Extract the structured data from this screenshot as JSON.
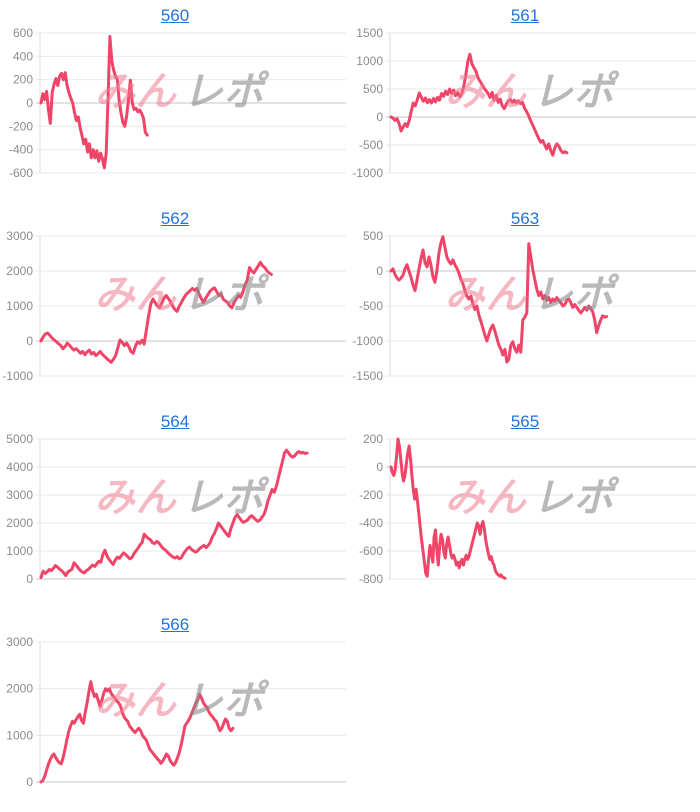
{
  "page": {
    "background": "#ffffff"
  },
  "style": {
    "line_color": "#f04468",
    "grid_color": "#e9e9e9",
    "zero_line_color": "#c4c4c4",
    "axis_line_color": "#dcdcdc",
    "tick_label_color": "#8b8b8b",
    "title_color": "#2273dc"
  },
  "watermark": {
    "part1": "みん",
    "part2": "レポ",
    "part1_color": "rgba(236,126,146,0.55)",
    "part2_color": "rgba(138,138,138,0.6)"
  },
  "chart_data": [
    {
      "title": "560",
      "type": "line",
      "ylim": [
        -600,
        600
      ],
      "yticks": [
        600,
        400,
        200,
        0,
        -200,
        -400,
        -600
      ],
      "x_span_pct": 34.7,
      "grid": "horizontal",
      "legend": "none",
      "values": [
        0,
        80,
        30,
        100,
        -60,
        -175,
        90,
        160,
        210,
        150,
        230,
        255,
        200,
        260,
        150,
        90,
        40,
        0,
        -80,
        -150,
        -120,
        -210,
        -280,
        -350,
        -310,
        -420,
        -350,
        -470,
        -400,
        -470,
        -410,
        -500,
        -430,
        -480,
        -555,
        -430,
        50,
        570,
        360,
        280,
        230,
        200,
        20,
        -90,
        -170,
        -200,
        -110,
        40,
        195,
        0,
        -55,
        -45,
        -75,
        -60,
        -90,
        -130,
        -250,
        -275
      ]
    },
    {
      "title": "561",
      "type": "line",
      "ylim": [
        -1000,
        1500
      ],
      "yticks": [
        1500,
        1000,
        500,
        0,
        -500,
        -1000
      ],
      "x_span_pct": 57.5,
      "grid": "horizontal",
      "legend": "none",
      "values": [
        0,
        -20,
        -60,
        -30,
        -120,
        -250,
        -180,
        -120,
        -170,
        -60,
        100,
        250,
        200,
        310,
        430,
        350,
        280,
        340,
        255,
        310,
        250,
        330,
        270,
        350,
        300,
        420,
        370,
        460,
        400,
        500,
        420,
        480,
        380,
        440,
        360,
        420,
        550,
        750,
        1000,
        1120,
        950,
        880,
        820,
        700,
        640,
        580,
        520,
        470,
        420,
        350,
        440,
        300,
        390,
        260,
        320,
        200,
        150,
        230,
        290,
        310,
        260,
        300,
        250,
        290,
        240,
        260,
        160,
        100,
        30,
        -60,
        -140,
        -220,
        -300,
        -380,
        -450,
        -420,
        -500,
        -570,
        -480,
        -600,
        -680,
        -550,
        -480,
        -520,
        -600,
        -640,
        -620,
        -640
      ]
    },
    {
      "title": "562",
      "type": "line",
      "ylim": [
        -1000,
        3000
      ],
      "yticks": [
        3000,
        2000,
        1000,
        0,
        -1000
      ],
      "x_span_pct": 75.3,
      "grid": "horizontal",
      "legend": "none",
      "values": [
        0,
        120,
        200,
        230,
        160,
        90,
        30,
        -20,
        -80,
        -130,
        -220,
        -160,
        -60,
        -120,
        -200,
        -260,
        -220,
        -280,
        -350,
        -300,
        -390,
        -310,
        -260,
        -370,
        -330,
        -420,
        -360,
        -300,
        -380,
        -440,
        -500,
        -560,
        -610,
        -520,
        -420,
        -200,
        30,
        -40,
        -130,
        -60,
        -160,
        -300,
        -350,
        -150,
        -20,
        -70,
        20,
        -90,
        300,
        700,
        1050,
        1200,
        1100,
        1000,
        950,
        1080,
        1220,
        1300,
        1220,
        1120,
        1000,
        900,
        850,
        1000,
        1100,
        1220,
        1320,
        1380,
        1440,
        1500,
        1450,
        1500,
        1350,
        1220,
        1100,
        1220,
        1320,
        1420,
        1480,
        1520,
        1420,
        1300,
        1350,
        1200,
        1150,
        1100,
        1000,
        950,
        1100,
        1200,
        1300,
        1250,
        1400,
        1600,
        1750,
        2100,
        2000,
        1950,
        2050,
        2150,
        2250,
        2150,
        2100,
        2000,
        1950,
        1900
      ]
    },
    {
      "title": "563",
      "type": "line",
      "ylim": [
        -1500,
        500
      ],
      "yticks": [
        500,
        0,
        -500,
        -1000,
        -1500
      ],
      "x_span_pct": 70.5,
      "grid": "horizontal",
      "legend": "none",
      "values": [
        0,
        30,
        -50,
        -100,
        -130,
        -100,
        -60,
        30,
        90,
        0,
        -90,
        -200,
        -280,
        -130,
        30,
        180,
        300,
        120,
        60,
        200,
        90,
        -80,
        -160,
        0,
        250,
        400,
        490,
        340,
        200,
        140,
        100,
        160,
        90,
        40,
        -30,
        -120,
        -180,
        -280,
        -360,
        -400,
        -360,
        -470,
        -550,
        -500,
        -630,
        -720,
        -820,
        -920,
        -1000,
        -900,
        -820,
        -770,
        -860,
        -960,
        -1060,
        -1120,
        -1200,
        -1120,
        -1300,
        -1260,
        -1060,
        -1010,
        -1110,
        -1160,
        -1060,
        -1160,
        -700,
        -660,
        -600,
        390,
        200,
        20,
        -120,
        -260,
        -350,
        -300,
        -400,
        -350,
        -420,
        -380,
        -450,
        -400,
        -430,
        -380,
        -420,
        -450,
        -500,
        -480,
        -420,
        -400,
        -450,
        -520,
        -480,
        -520,
        -560,
        -600,
        -560,
        -520,
        -560,
        -500,
        -540,
        -580,
        -700,
        -880,
        -780,
        -700,
        -640,
        -660,
        -650
      ]
    },
    {
      "title": "564",
      "type": "line",
      "ylim": [
        0,
        5000
      ],
      "yticks": [
        5000,
        4000,
        3000,
        2000,
        1000,
        0
      ],
      "x_span_pct": 87.0,
      "grid": "horizontal",
      "legend": "none",
      "values": [
        50,
        280,
        200,
        260,
        340,
        300,
        380,
        480,
        430,
        350,
        300,
        220,
        120,
        250,
        300,
        350,
        580,
        500,
        400,
        310,
        250,
        220,
        300,
        350,
        420,
        500,
        450,
        540,
        630,
        600,
        880,
        1030,
        820,
        700,
        600,
        520,
        680,
        780,
        740,
        840,
        930,
        880,
        800,
        720,
        760,
        900,
        1000,
        1100,
        1220,
        1300,
        1600,
        1520,
        1450,
        1400,
        1300,
        1260,
        1340,
        1300,
        1200,
        1100,
        1050,
        980,
        900,
        840,
        780,
        750,
        800,
        720,
        760,
        900,
        1000,
        1100,
        1140,
        1050,
        1000,
        960,
        1010,
        1100,
        1150,
        1200,
        1120,
        1200,
        1300,
        1500,
        1620,
        1800,
        2000,
        1900,
        1800,
        1700,
        1600,
        1520,
        1800,
        2000,
        2200,
        2300,
        2200,
        2100,
        2020,
        2060,
        2100,
        2200,
        2260,
        2200,
        2120,
        2060,
        2100,
        2200,
        2300,
        2500,
        2800,
        3000,
        3200,
        3100,
        3300,
        3600,
        3900,
        4200,
        4500,
        4600,
        4500,
        4400,
        4350,
        4400,
        4500,
        4550,
        4500,
        4520,
        4480,
        4500
      ]
    },
    {
      "title": "565",
      "type": "line",
      "ylim": [
        -800,
        200
      ],
      "yticks": [
        200,
        0,
        -200,
        -400,
        -600,
        -800
      ],
      "x_span_pct": 37.3,
      "grid": "horizontal",
      "legend": "none",
      "values": [
        0,
        -40,
        -60,
        -20,
        80,
        200,
        150,
        60,
        -40,
        -100,
        -60,
        20,
        100,
        150,
        60,
        -60,
        -160,
        -230,
        -160,
        -240,
        -330,
        -430,
        -520,
        -600,
        -680,
        -760,
        -780,
        -660,
        -560,
        -610,
        -680,
        -500,
        -450,
        -600,
        -700,
        -560,
        -480,
        -520,
        -610,
        -650,
        -550,
        -500,
        -560,
        -620,
        -650,
        -630,
        -660,
        -700,
        -680,
        -720,
        -680,
        -660,
        -700,
        -660,
        -630,
        -660,
        -640,
        -600,
        -560,
        -520,
        -480,
        -440,
        -400,
        -420,
        -480,
        -420,
        -390,
        -440,
        -520,
        -570,
        -620,
        -660,
        -640,
        -680,
        -700,
        -740,
        -760,
        -770,
        -780,
        -770,
        -785,
        -790,
        -795
      ]
    },
    {
      "title": "566",
      "type": "line",
      "ylim": [
        0,
        3000
      ],
      "yticks": [
        3000,
        2000,
        1000,
        0
      ],
      "x_span_pct": 62.7,
      "grid": "horizontal",
      "legend": "none",
      "values": [
        0,
        30,
        120,
        250,
        380,
        480,
        560,
        600,
        520,
        460,
        410,
        390,
        520,
        700,
        900,
        1080,
        1200,
        1300,
        1260,
        1340,
        1400,
        1450,
        1320,
        1260,
        1500,
        1700,
        1950,
        2150,
        1950,
        1830,
        1880,
        1750,
        1620,
        1760,
        1900,
        2000,
        1950,
        2000,
        1900,
        1850,
        1800,
        1740,
        1700,
        1640,
        1500,
        1400,
        1340,
        1300,
        1200,
        1150,
        1100,
        1060,
        1110,
        1150,
        1100,
        1000,
        950,
        900,
        800,
        700,
        650,
        600,
        550,
        500,
        460,
        400,
        450,
        520,
        600,
        560,
        460,
        400,
        360,
        420,
        520,
        640,
        800,
        1000,
        1200,
        1260,
        1320,
        1400,
        1500,
        1600,
        1700,
        1760,
        1880,
        1800,
        1700,
        1640,
        1600,
        1500,
        1440,
        1400,
        1340,
        1300,
        1200,
        1100,
        1150,
        1250,
        1350,
        1300,
        1150,
        1100,
        1150
      ]
    }
  ]
}
